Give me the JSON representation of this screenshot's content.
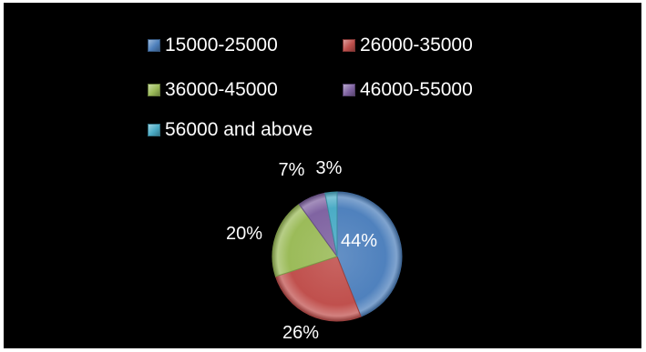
{
  "chart_data": {
    "type": "pie",
    "categories": [
      "15000-25000",
      "26000-35000",
      "36000-45000",
      "46000-55000",
      "56000 and above"
    ],
    "values": [
      44,
      26,
      20,
      7,
      3
    ],
    "value_labels": [
      "44%",
      "26%",
      "20%",
      "7%",
      "3%"
    ],
    "colors": [
      "#4F81BD",
      "#C0504D",
      "#9BBB59",
      "#8064A2",
      "#4BACC6"
    ],
    "legend_position": "top",
    "background": "#000000",
    "style": "3d-beveled"
  }
}
